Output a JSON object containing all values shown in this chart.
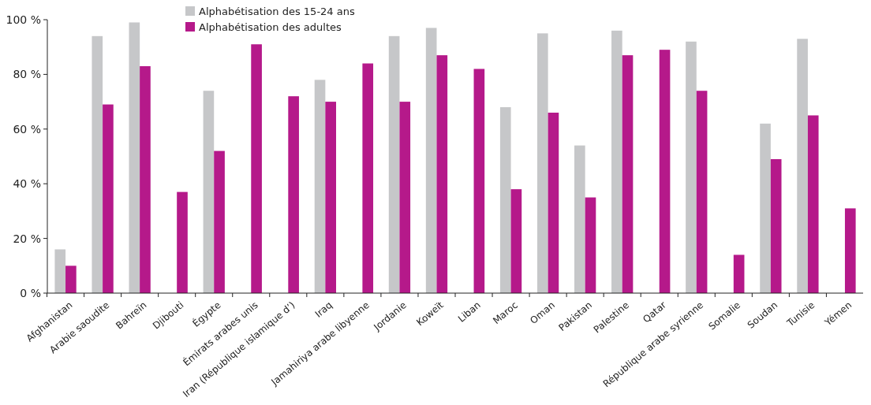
{
  "chart_data": {
    "type": "bar",
    "categories": [
      "Afghanistan",
      "Arabie saoudite",
      "Bahreïn",
      "Djibouti",
      "Égypte",
      "Émirats arabes unis",
      "Iran (République islamique d’)",
      "Iraq",
      "Jamahiriya arabe libyenne",
      "Jordanie",
      "Koweït",
      "Liban",
      "Maroc",
      "Oman",
      "Pakistan",
      "Palestine",
      "Qatar",
      "République arabe syrienne",
      "Somalie",
      "Soudan",
      "Tunisie",
      "Yémen"
    ],
    "series": [
      {
        "name": "Alphabétisation des 15-24 ans",
        "color": "#c6c7c9",
        "values": [
          16,
          94,
          99,
          null,
          74,
          null,
          null,
          78,
          null,
          94,
          97,
          null,
          68,
          95,
          54,
          96,
          null,
          92,
          null,
          62,
          93,
          null
        ]
      },
      {
        "name": "Alphabétisation des adultes",
        "color": "#b5198a",
        "values": [
          10,
          69,
          83,
          37,
          52,
          91,
          72,
          70,
          84,
          70,
          87,
          82,
          38,
          66,
          35,
          87,
          89,
          74,
          14,
          49,
          65,
          31
        ]
      }
    ],
    "ylim": [
      0,
      100
    ],
    "yticks": [
      {
        "value": 0,
        "label": "0 %"
      },
      {
        "value": 20,
        "label": "20 %"
      },
      {
        "value": 40,
        "label": "40 %"
      },
      {
        "value": 60,
        "label": "60 %"
      },
      {
        "value": 80,
        "label": "80 %"
      },
      {
        "value": 100,
        "label": "100 %"
      }
    ],
    "grid": false,
    "legend": "top"
  }
}
